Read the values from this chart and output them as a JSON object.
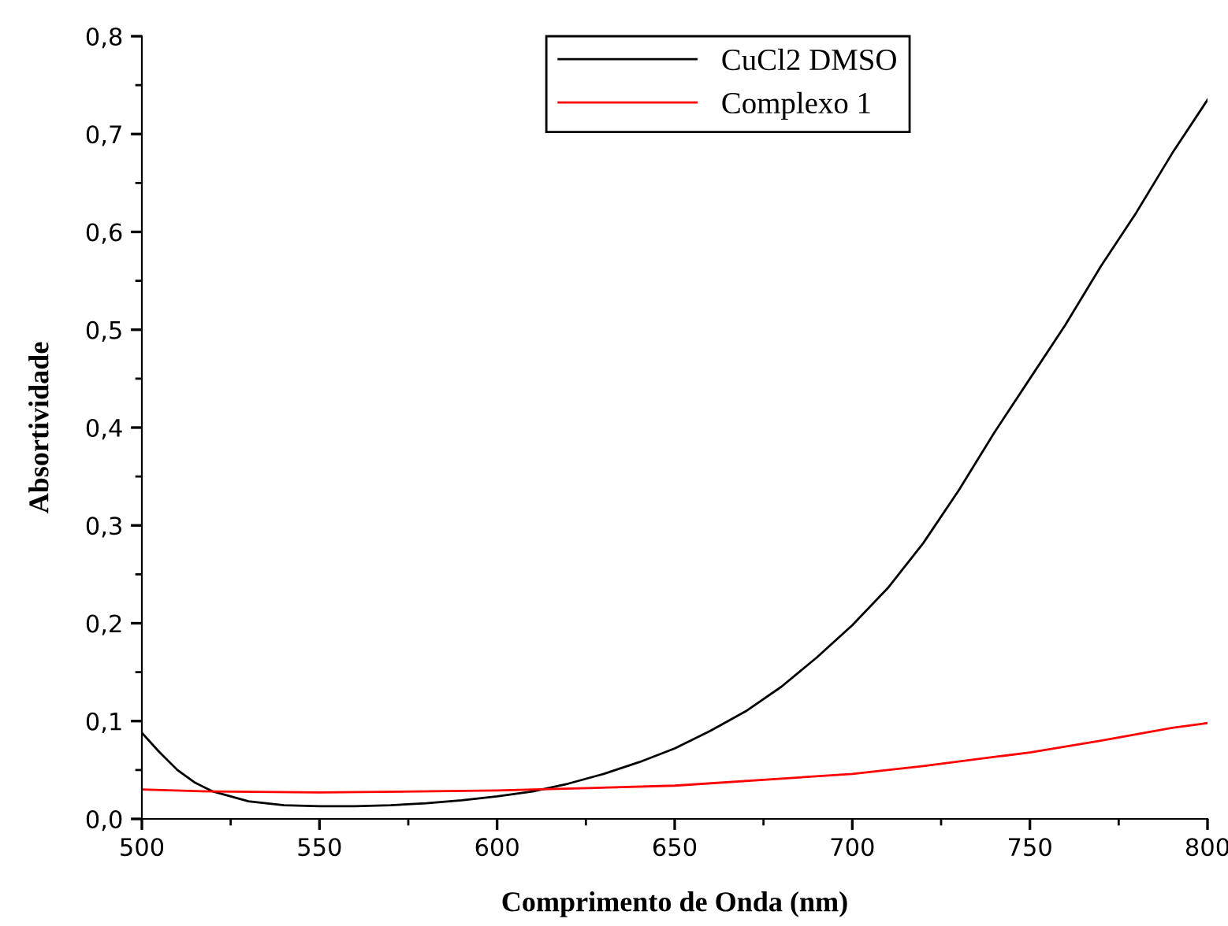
{
  "chart_data": {
    "type": "line",
    "xlabel": "Comprimento de Onda (nm)",
    "ylabel": "Absortividade",
    "xlim": [
      500,
      800
    ],
    "xticks": [
      500,
      550,
      600,
      650,
      700,
      750,
      800
    ],
    "ylim": [
      0,
      0.8
    ],
    "yticks": [
      {
        "value": 0,
        "label": "0,0"
      },
      {
        "value": 0.1,
        "label": "0,1"
      },
      {
        "value": 0.2,
        "label": "0,2"
      },
      {
        "value": 0.3,
        "label": "0,3"
      },
      {
        "value": 0.4,
        "label": "0,4"
      },
      {
        "value": 0.5,
        "label": "0,5"
      },
      {
        "value": 0.6,
        "label": "0,6"
      },
      {
        "value": 0.7,
        "label": "0,7"
      },
      {
        "value": 0.8,
        "label": "0,8"
      }
    ],
    "grid": false,
    "legend": "top",
    "marker": "none",
    "line_style": "solid",
    "series": [
      {
        "name": "CuCl2 DMSO",
        "color": "#000000",
        "x": [
          500,
          505,
          510,
          515,
          520,
          530,
          540,
          550,
          560,
          570,
          580,
          590,
          600,
          610,
          620,
          630,
          640,
          650,
          660,
          670,
          680,
          690,
          700,
          710,
          720,
          730,
          740,
          750,
          760,
          770,
          780,
          790,
          800
        ],
        "values": [
          0.088,
          0.068,
          0.05,
          0.037,
          0.028,
          0.018,
          0.014,
          0.013,
          0.013,
          0.014,
          0.016,
          0.019,
          0.023,
          0.028,
          0.036,
          0.046,
          0.058,
          0.072,
          0.09,
          0.11,
          0.135,
          0.165,
          0.198,
          0.236,
          0.282,
          0.336,
          0.395,
          0.45,
          0.505,
          0.565,
          0.62,
          0.68,
          0.735
        ]
      },
      {
        "name": "Complexo 1",
        "color": "#ff0000",
        "x": [
          500,
          520,
          550,
          600,
          650,
          700,
          720,
          750,
          770,
          790,
          800
        ],
        "values": [
          0.03,
          0.028,
          0.027,
          0.029,
          0.034,
          0.046,
          0.054,
          0.068,
          0.08,
          0.093,
          0.098
        ]
      }
    ]
  }
}
